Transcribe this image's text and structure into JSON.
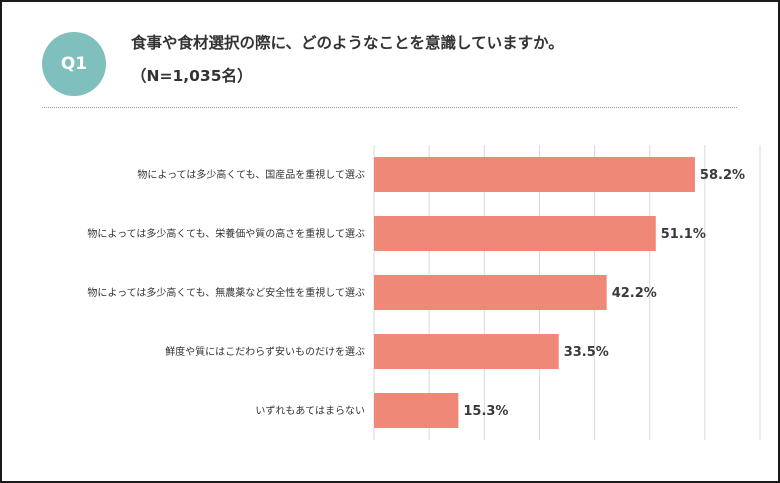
{
  "header": {
    "badge": "Q1",
    "question": "食事や食材選択の際に、どのようなことを意識していますか。",
    "sample": "（N=1,035名）"
  },
  "colors": {
    "badge": "#7fbfbd",
    "bar": "#f08878",
    "grid": "#d9d9d9"
  },
  "chart_data": {
    "type": "bar",
    "orientation": "horizontal",
    "categories": [
      "物によっては多少高くても、国産品を重視して選ぶ",
      "物によっては多少高くても、栄養価や質の高さを重視して選ぶ",
      "物によっては多少高くても、無農薬など安全性を重視して選ぶ",
      "鮮度や質にはこだわらず安いものだけを選ぶ",
      "いずれもあてはまらない"
    ],
    "values": [
      58.2,
      51.1,
      42.2,
      33.5,
      15.3
    ],
    "value_labels": [
      "58.2%",
      "51.1%",
      "42.2%",
      "33.5%",
      "15.3%"
    ],
    "xlim": [
      0,
      70
    ],
    "grid": true,
    "title": "",
    "xlabel": "",
    "ylabel": ""
  }
}
